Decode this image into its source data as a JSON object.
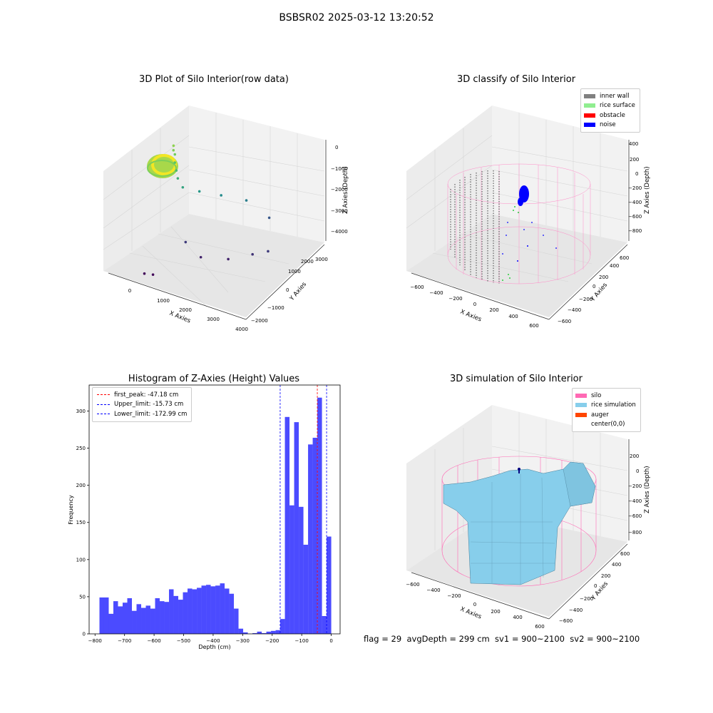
{
  "figure": {
    "suptitle": "BSBSR02 2025-03-12 13:20:52",
    "footer": "flag = 29  avgDepth = 299 cm  sv1 = 900~2100  sv2 = 900~2100"
  },
  "chart_data": [
    {
      "type": "scatter",
      "title": "3D Plot of Silo Interior(row data)",
      "xlabel": "X Axies",
      "ylabel": "Y Axies",
      "zlabel": "Z Axies (Depth)",
      "x_ticks": [
        "0",
        "1000",
        "2000",
        "3000",
        "4000"
      ],
      "y_ticks": [
        "−2000",
        "−1000",
        "0",
        "1000",
        "2000",
        "3000"
      ],
      "z_ticks": [
        "0",
        "−1000",
        "−2000",
        "−3000",
        "−4000"
      ],
      "colormap": "viridis (colored by depth)",
      "points": [
        {
          "x": 300,
          "y": 1500,
          "z": -700
        },
        {
          "x": 350,
          "y": 1400,
          "z": -800
        },
        {
          "x": 420,
          "y": 1350,
          "z": -900
        },
        {
          "x": 500,
          "y": 1200,
          "z": -1100
        },
        {
          "x": 600,
          "y": 1100,
          "z": -1300
        },
        {
          "x": 700,
          "y": 1000,
          "z": -1500
        },
        {
          "x": 900,
          "y": 900,
          "z": -1700
        },
        {
          "x": 1200,
          "y": 1300,
          "z": -1900
        },
        {
          "x": 1600,
          "y": 1800,
          "z": -2100
        },
        {
          "x": 2100,
          "y": 2300,
          "z": -2300
        },
        {
          "x": 2600,
          "y": 2700,
          "z": -2900
        },
        {
          "x": 1300,
          "y": 400,
          "z": -3300
        },
        {
          "x": 1800,
          "y": 300,
          "z": -3600
        },
        {
          "x": 2400,
          "y": 700,
          "z": -3600
        },
        {
          "x": 2900,
          "y": 1100,
          "z": -3400
        },
        {
          "x": 3200,
          "y": 1400,
          "z": -3300
        },
        {
          "x": 900,
          "y": -1200,
          "z": -3900
        },
        {
          "x": 1100,
          "y": -1100,
          "z": -3900
        }
      ]
    },
    {
      "type": "scatter",
      "title": "3D classify of Silo Interior",
      "xlabel": "X Axies",
      "ylabel": "Y Axies",
      "zlabel": "Z Axies (Depth)",
      "x_ticks": [
        "−600",
        "−400",
        "−200",
        "0",
        "200",
        "400",
        "600"
      ],
      "y_ticks": [
        "−600",
        "−400",
        "−200",
        "0",
        "200",
        "400",
        "600"
      ],
      "z_ticks": [
        "400",
        "200",
        "0",
        "−200",
        "−400",
        "−600",
        "−800"
      ],
      "legend": [
        {
          "label": "inner wall",
          "color": "#808080"
        },
        {
          "label": "rice surface",
          "color": "#90ee90"
        },
        {
          "label": "obstacle",
          "color": "#ff0000"
        },
        {
          "label": "noise",
          "color": "#0000ff"
        }
      ],
      "legend_position": "top-right"
    },
    {
      "type": "bar",
      "title": "Histogram of Z-Axies (Height) Values",
      "xlabel": "Depth (cm)",
      "ylabel": "Frequency",
      "xlim": [
        -820,
        30
      ],
      "ylim": [
        0,
        335
      ],
      "x_ticks": [
        -800,
        -700,
        -600,
        -500,
        -400,
        -300,
        -200,
        -100,
        0
      ],
      "y_ticks": [
        0,
        50,
        100,
        150,
        200,
        250,
        300
      ],
      "bin_width": 15.7,
      "bin_start": -785,
      "values": [
        49,
        49,
        27,
        44,
        37,
        42,
        48,
        31,
        40,
        35,
        38,
        34,
        48,
        44,
        43,
        60,
        51,
        46,
        56,
        61,
        60,
        62,
        65,
        66,
        64,
        65,
        68,
        61,
        54,
        34,
        7,
        2,
        0,
        1,
        3,
        1,
        3,
        4,
        5,
        20,
        292,
        173,
        285,
        171,
        120,
        255,
        264,
        318,
        24,
        131
      ],
      "bar_color": "#4b4bff",
      "lines": [
        {
          "label": "first_peak: -47.18 cm",
          "value": -47.18,
          "color": "#ff0000"
        },
        {
          "label": "Upper_limit: -15.73 cm",
          "value": -15.73,
          "color": "#0000ff"
        },
        {
          "label": "Lower_limit: -172.99 cm",
          "value": -172.99,
          "color": "#0000ff"
        }
      ],
      "legend_position": "top-left"
    },
    {
      "type": "surface",
      "title": "3D simulation of Silo Interior",
      "xlabel": "X Axies",
      "ylabel": "Y Axies",
      "zlabel": "Z Axies (Depth)",
      "x_ticks": [
        "−600",
        "−400",
        "−200",
        "0",
        "200",
        "400",
        "600"
      ],
      "y_ticks": [
        "−600",
        "−400",
        "−200",
        "0",
        "200",
        "400",
        "600"
      ],
      "z_ticks": [
        "200",
        "0",
        "−200",
        "−400",
        "−600",
        "−800"
      ],
      "legend": [
        {
          "label": "silo",
          "color": "#ff69b4"
        },
        {
          "label": "rice simulation",
          "color": "#87ceeb"
        },
        {
          "label": "auger",
          "color": "#ff4500"
        },
        {
          "label": "center(0,0)",
          "color": "#ffffff"
        }
      ],
      "legend_position": "top-right"
    }
  ]
}
